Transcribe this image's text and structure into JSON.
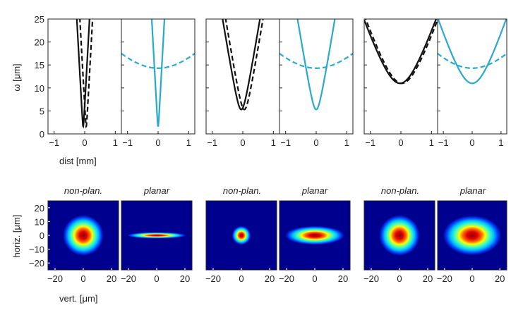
{
  "colors": {
    "black": "#111111",
    "cyan": "#2aa9cf",
    "frame": "#222222"
  },
  "top": {
    "ylabel": "ω [μm]",
    "xlabel": "dist [mm]",
    "xlim": [
      -1.2,
      1.2
    ],
    "ylim": [
      0,
      25
    ],
    "xticks": [
      "-1",
      "0",
      "1"
    ],
    "yticks": [
      "0",
      "5",
      "10",
      "15",
      "20",
      "25"
    ]
  },
  "bottom": {
    "ylabel": "horiz. [μm]",
    "xlabel": "vert. [μm]",
    "xlim": [
      -25,
      25
    ],
    "ylim": [
      -25,
      25
    ],
    "xticks": [
      "-20",
      "0",
      "20"
    ],
    "yticks": [
      "-20",
      "-10",
      "0",
      "10",
      "20"
    ],
    "titles": [
      "non-plan.",
      "planar",
      "non-plan.",
      "planar",
      "non-plan.",
      "planar"
    ]
  },
  "chart_data": [
    {
      "type": "line",
      "xlabel": "dist [mm]",
      "ylabel": "ω [μm]",
      "xlim": [
        -1.2,
        1.2
      ],
      "ylim": [
        0,
        25
      ],
      "series": [
        {
          "color": "#111111",
          "style": "solid",
          "w0": 1.6,
          "z0": -0.05,
          "slope": 0.0
        },
        {
          "color": "#111111",
          "style": "dashed",
          "w0": 1.6,
          "z0": 0.05,
          "slope": 0.0
        }
      ],
      "curve_params_units": "w0 in μm, z0 in mm, growth rate in μm/mm",
      "growth": [
        120,
        120
      ]
    },
    {
      "type": "line",
      "xlim": [
        -1.2,
        1.2
      ],
      "ylim": [
        0,
        25
      ],
      "series": [
        {
          "color": "#2aa9cf",
          "style": "solid",
          "w0": 1.6,
          "z0": 0.0
        },
        {
          "color": "#2aa9cf",
          "style": "dashed",
          "w0": 14.3,
          "z0": 0.0
        }
      ],
      "growth": [
        120,
        8.4
      ]
    },
    {
      "type": "line",
      "xlim": [
        -1.2,
        1.2
      ],
      "ylim": [
        0,
        25
      ],
      "series": [
        {
          "color": "#111111",
          "style": "solid",
          "w0": 5.3,
          "z0": -0.05
        },
        {
          "color": "#111111",
          "style": "dashed",
          "w0": 5.3,
          "z0": 0.05
        }
      ],
      "growth": [
        40,
        40
      ]
    },
    {
      "type": "line",
      "xlim": [
        -1.2,
        1.2
      ],
      "ylim": [
        0,
        25
      ],
      "series": [
        {
          "color": "#2aa9cf",
          "style": "solid",
          "w0": 5.3,
          "z0": 0.0
        },
        {
          "color": "#2aa9cf",
          "style": "dashed",
          "w0": 14.3,
          "z0": 0.0
        }
      ],
      "growth": [
        40,
        8.4
      ]
    },
    {
      "type": "line",
      "xlim": [
        -1.2,
        1.2
      ],
      "ylim": [
        0,
        25
      ],
      "series": [
        {
          "color": "#111111",
          "style": "solid",
          "w0": 11.0,
          "z0": -0.03
        },
        {
          "color": "#111111",
          "style": "dashed",
          "w0": 11.0,
          "z0": 0.03
        }
      ],
      "growth": [
        19,
        19
      ]
    },
    {
      "type": "line",
      "xlim": [
        -1.2,
        1.2
      ],
      "ylim": [
        0,
        25
      ],
      "series": [
        {
          "color": "#2aa9cf",
          "style": "solid",
          "w0": 11.0,
          "z0": 0.0
        },
        {
          "color": "#2aa9cf",
          "style": "dashed",
          "w0": 14.3,
          "z0": 0.0
        }
      ],
      "growth": [
        19,
        8.4
      ]
    },
    {
      "type": "heatmap",
      "title": "non-plan.",
      "sigma_x": 6.5,
      "sigma_y": 6.5
    },
    {
      "type": "heatmap",
      "title": "planar",
      "sigma_x": 9.5,
      "sigma_y": 1.0
    },
    {
      "type": "heatmap",
      "title": "non-plan.",
      "sigma_x": 3.0,
      "sigma_y": 3.0
    },
    {
      "type": "heatmap",
      "title": "planar",
      "sigma_x": 9.5,
      "sigma_y": 3.0
    },
    {
      "type": "heatmap",
      "title": "non-plan.",
      "sigma_x": 6.5,
      "sigma_y": 6.5
    },
    {
      "type": "heatmap",
      "title": "planar",
      "sigma_x": 9.5,
      "sigma_y": 6.5
    }
  ]
}
